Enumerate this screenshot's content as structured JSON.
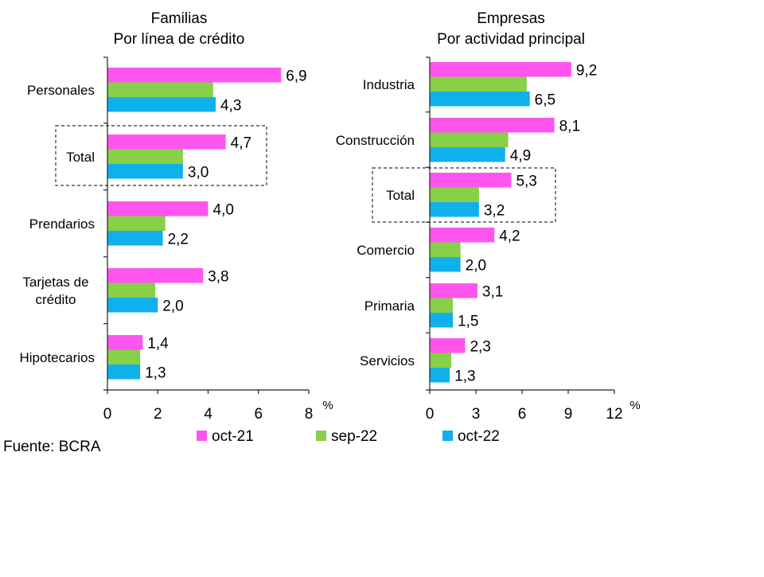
{
  "colors": {
    "oct21": "#ff55ee",
    "sep22": "#88d048",
    "oct22": "#10b0ec"
  },
  "legend": {
    "items": [
      {
        "label": "oct-21",
        "color": "#ff55ee"
      },
      {
        "label": "sep-22",
        "color": "#88d048"
      },
      {
        "label": "oct-22",
        "color": "#10b0ec"
      }
    ]
  },
  "source": "Fuente: BCRA",
  "chart_data": [
    {
      "type": "bar",
      "orientation": "horizontal",
      "title": "Familias",
      "subtitle": "Por línea de crédito",
      "unit": "%",
      "xlim": [
        0,
        8
      ],
      "xticks": [
        0,
        2,
        4,
        6,
        8
      ],
      "xtick_labels": [
        "0",
        "2",
        "4",
        "6",
        "8"
      ],
      "categories": [
        "Personales",
        "Total",
        "Prendarios",
        "Tarjetas de\ncrédito",
        "Hipotecarios"
      ],
      "highlight_category": "Total",
      "series": [
        {
          "name": "oct-21",
          "values": [
            6.9,
            4.7,
            4.0,
            3.8,
            1.4
          ],
          "labels": [
            "6,9",
            "4,7",
            "4,0",
            "3,8",
            "1,4"
          ]
        },
        {
          "name": "sep-22",
          "values": [
            4.2,
            3.0,
            2.3,
            1.9,
            1.3
          ],
          "labels": [
            "",
            "",
            "",
            "",
            ""
          ]
        },
        {
          "name": "oct-22",
          "values": [
            4.3,
            3.0,
            2.2,
            2.0,
            1.3
          ],
          "labels": [
            "4,3",
            "3,0",
            "2,2",
            "2,0",
            "1,3"
          ]
        }
      ]
    },
    {
      "type": "bar",
      "orientation": "horizontal",
      "title": "Empresas",
      "subtitle": "Por actividad principal",
      "unit": "%",
      "xlim": [
        0,
        12
      ],
      "xticks": [
        0,
        3,
        6,
        9,
        12
      ],
      "xtick_labels": [
        "0",
        "3",
        "6",
        "9",
        "12"
      ],
      "categories": [
        "Industria",
        "Construcción",
        "Total",
        "Comercio",
        "Primaria",
        "Servicios"
      ],
      "highlight_category": "Total",
      "series": [
        {
          "name": "oct-21",
          "values": [
            9.2,
            8.1,
            5.3,
            4.2,
            3.1,
            2.3
          ],
          "labels": [
            "9,2",
            "8,1",
            "5,3",
            "4,2",
            "3,1",
            "2,3"
          ]
        },
        {
          "name": "sep-22",
          "values": [
            6.3,
            5.1,
            3.2,
            2.0,
            1.5,
            1.4
          ],
          "labels": [
            "",
            "",
            "",
            "",
            "",
            ""
          ]
        },
        {
          "name": "oct-22",
          "values": [
            6.5,
            4.9,
            3.2,
            2.0,
            1.5,
            1.3
          ],
          "labels": [
            "6,5",
            "4,9",
            "3,2",
            "2,0",
            "1,5",
            "1,3"
          ]
        }
      ]
    }
  ]
}
